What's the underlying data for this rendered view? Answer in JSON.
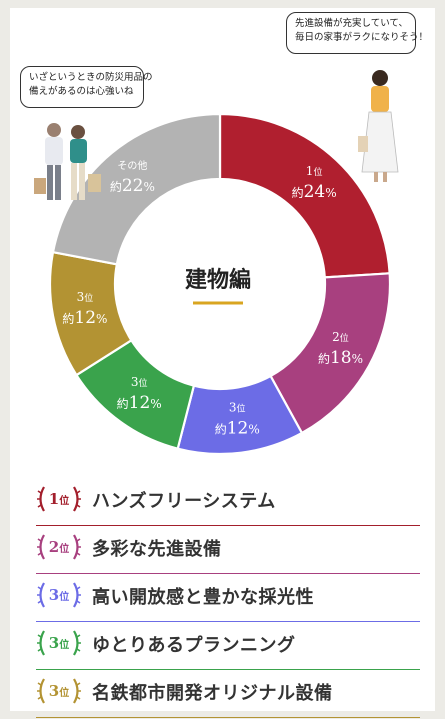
{
  "bubbles": {
    "left": {
      "lines": [
        "いざというときの防災用品の",
        "備えがあるのは心強いね"
      ]
    },
    "right": {
      "lines": [
        "先進設備が充実していて、",
        "毎日の家事がラクになりそう！"
      ]
    }
  },
  "chart_data": {
    "type": "pie",
    "center_label": "建物編",
    "slices": [
      {
        "rank": "1",
        "rank_unit": "位",
        "prefix": "約",
        "value": 24,
        "unit": "%",
        "color": "#b01f2f"
      },
      {
        "rank": "2",
        "rank_unit": "位",
        "prefix": "約",
        "value": 18,
        "unit": "%",
        "color": "#a8407f"
      },
      {
        "rank": "3",
        "rank_unit": "位",
        "prefix": "約",
        "value": 12,
        "unit": "%",
        "color": "#6c6ce6"
      },
      {
        "rank": "3",
        "rank_unit": "位",
        "prefix": "約",
        "value": 12,
        "unit": "%",
        "color": "#3aa34c"
      },
      {
        "rank": "3",
        "rank_unit": "位",
        "prefix": "約",
        "value": 12,
        "unit": "%",
        "color": "#b39333"
      },
      {
        "rank": "その他",
        "rank_unit": "",
        "prefix": "約",
        "value": 22,
        "unit": "%",
        "color": "#b3b3b3"
      }
    ]
  },
  "ranking": [
    {
      "num": "1",
      "unit": "位",
      "label": "ハンズフリーシステム",
      "color": "#a31f2c"
    },
    {
      "num": "2",
      "unit": "位",
      "label": "多彩な先進設備",
      "color": "#a8407f"
    },
    {
      "num": "3",
      "unit": "位",
      "label": "高い開放感と豊かな採光性",
      "color": "#6c6ce6"
    },
    {
      "num": "3",
      "unit": "位",
      "label": "ゆとりあるプランニング",
      "color": "#3aa34c"
    },
    {
      "num": "3",
      "unit": "位",
      "label": "名鉄都市開発オリジナル設備",
      "color": "#b39333"
    }
  ],
  "accent_color": "#d9a520"
}
